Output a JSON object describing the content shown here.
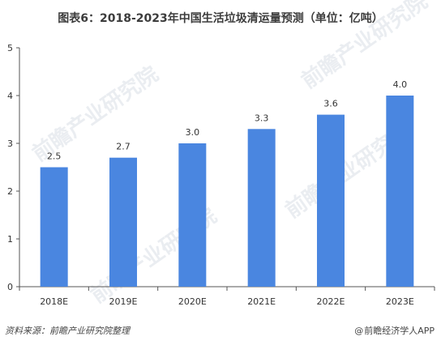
{
  "chart_data": {
    "type": "bar",
    "title": "图表6：2018-2023年中国生活垃圾清运量预测（单位：亿吨）",
    "categories": [
      "2018E",
      "2019E",
      "2020E",
      "2021E",
      "2022E",
      "2023E"
    ],
    "values": [
      2.5,
      2.7,
      3.0,
      3.3,
      3.6,
      4.0
    ],
    "data_labels": [
      "2.5",
      "2.7",
      "3.0",
      "3.3",
      "3.6",
      "4.0"
    ],
    "ylim": [
      0,
      5
    ],
    "yticks": [
      "0",
      "1",
      "2",
      "3",
      "4",
      "5"
    ],
    "xlabel": "",
    "ylabel": "",
    "grid": false,
    "legend": "none",
    "bar_color": "#4a86e0"
  },
  "watermark": {
    "text": "前瞻产业研究院"
  },
  "footer": {
    "source": "资料来源：前瞻产业研究院整理",
    "brand_symbol": "@",
    "brand": "前瞻经济学人APP"
  }
}
